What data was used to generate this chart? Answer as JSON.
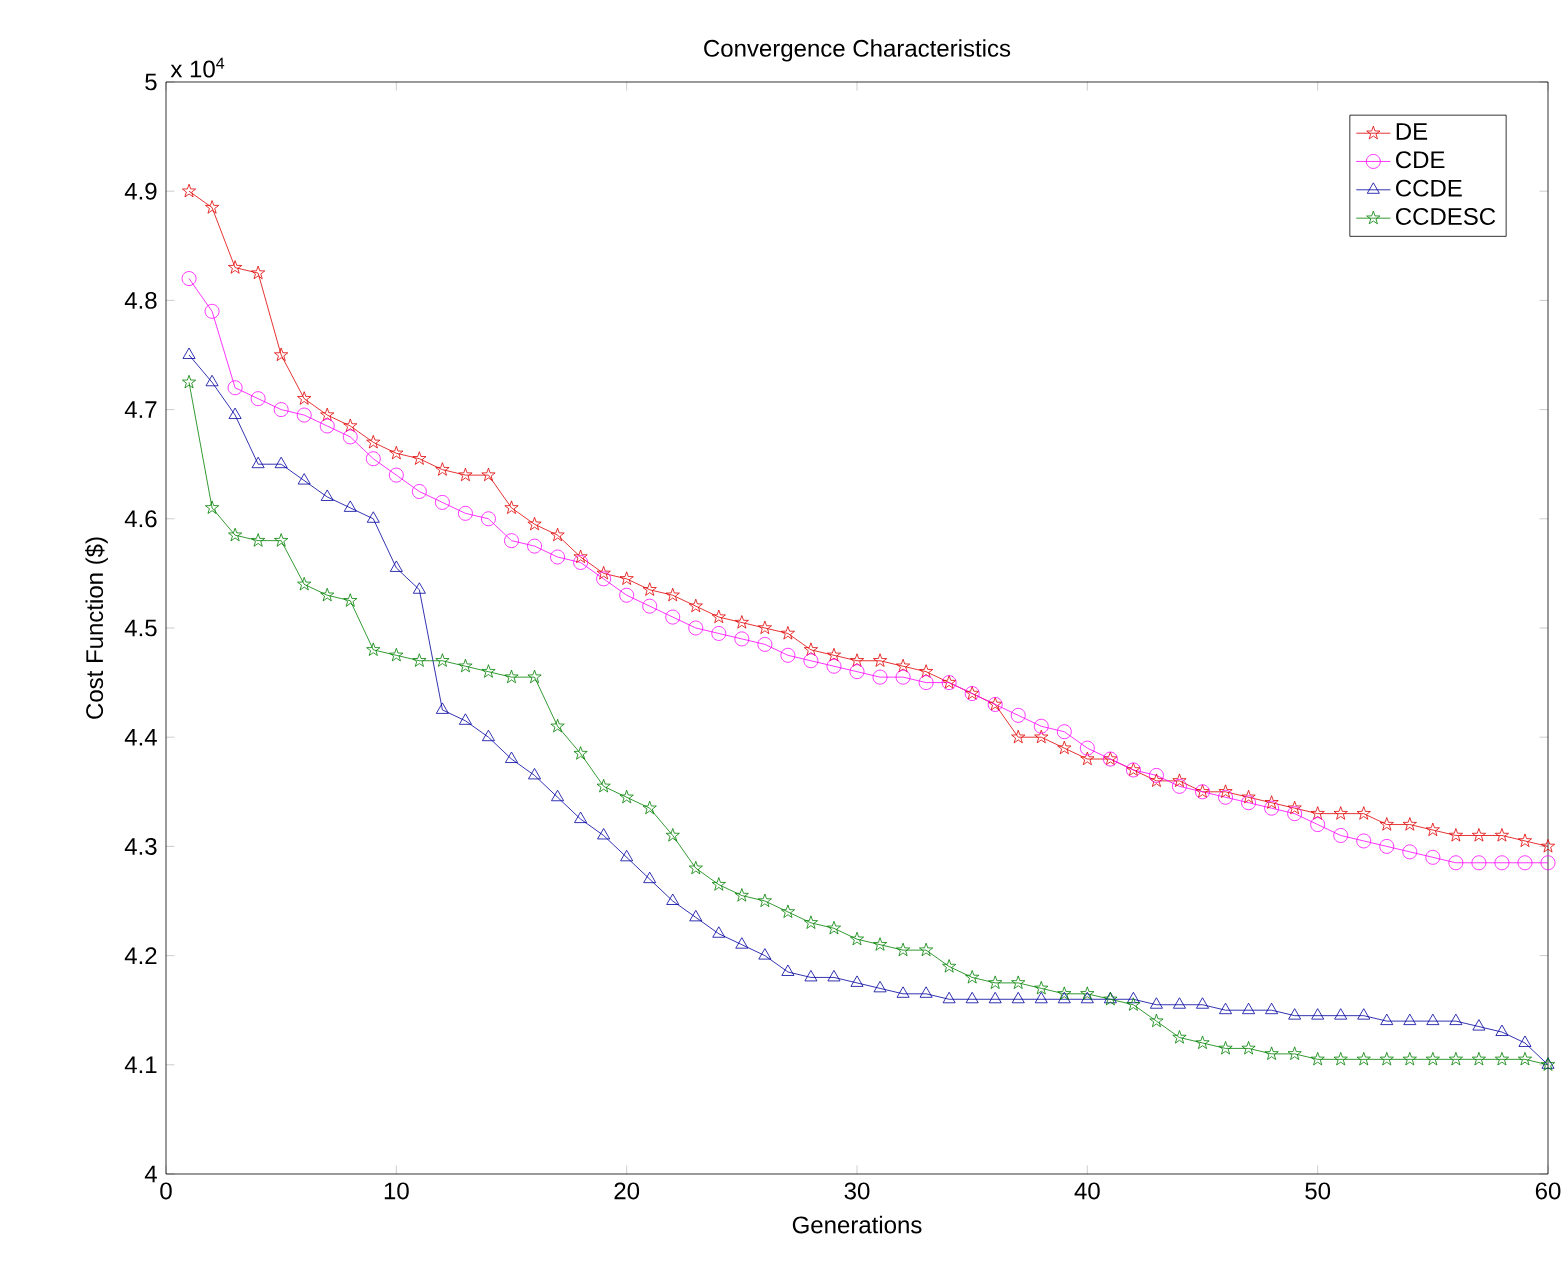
{
  "chart_data": {
    "type": "line",
    "title": "Convergence Characteristics",
    "xlabel": "Generations",
    "ylabel": "Cost Function ($)",
    "annotations": [
      "x 10$^{4}$"
    ],
    "x": [
      1,
      2,
      3,
      4,
      5,
      6,
      7,
      8,
      9,
      10,
      11,
      12,
      13,
      14,
      15,
      16,
      17,
      18,
      19,
      20,
      21,
      22,
      23,
      24,
      25,
      26,
      27,
      28,
      29,
      30,
      31,
      32,
      33,
      34,
      35,
      36,
      37,
      38,
      39,
      40,
      41,
      42,
      43,
      44,
      45,
      46,
      47,
      48,
      49,
      50,
      51,
      52,
      53,
      54,
      55,
      56,
      57,
      58,
      59,
      60
    ],
    "series": [
      {
        "name": "DE",
        "color": "#e00000",
        "marker": "star",
        "values": [
          4.9,
          4.885,
          4.83,
          4.825,
          4.75,
          4.71,
          4.695,
          4.685,
          4.67,
          4.66,
          4.655,
          4.645,
          4.64,
          4.64,
          4.61,
          4.595,
          4.585,
          4.565,
          4.55,
          4.545,
          4.535,
          4.53,
          4.52,
          4.51,
          4.505,
          4.5,
          4.495,
          4.48,
          4.475,
          4.47,
          4.47,
          4.465,
          4.46,
          4.45,
          4.44,
          4.43,
          4.4,
          4.4,
          4.39,
          4.38,
          4.38,
          4.37,
          4.36,
          4.36,
          4.35,
          4.35,
          4.345,
          4.34,
          4.335,
          4.33,
          4.33,
          4.33,
          4.32,
          4.32,
          4.315,
          4.31,
          4.31,
          4.31,
          4.305,
          4.3
        ]
      },
      {
        "name": "CDE",
        "color": "#ff00ff",
        "marker": "circle",
        "values": [
          4.82,
          4.79,
          4.72,
          4.71,
          4.7,
          4.695,
          4.685,
          4.675,
          4.655,
          4.64,
          4.625,
          4.615,
          4.605,
          4.6,
          4.58,
          4.575,
          4.565,
          4.56,
          4.545,
          4.53,
          4.52,
          4.51,
          4.5,
          4.495,
          4.49,
          4.485,
          4.475,
          4.47,
          4.465,
          4.46,
          4.455,
          4.455,
          4.45,
          4.45,
          4.44,
          4.43,
          4.42,
          4.41,
          4.405,
          4.39,
          4.38,
          4.37,
          4.365,
          4.355,
          4.35,
          4.345,
          4.34,
          4.335,
          4.33,
          4.32,
          4.31,
          4.305,
          4.3,
          4.295,
          4.29,
          4.285,
          4.285,
          4.285,
          4.285,
          4.285
        ]
      },
      {
        "name": "CCDE",
        "color": "#0000a0",
        "marker": "triangle",
        "values": [
          4.75,
          4.725,
          4.695,
          4.65,
          4.65,
          4.635,
          4.62,
          4.61,
          4.6,
          4.555,
          4.535,
          4.425,
          4.415,
          4.4,
          4.38,
          4.365,
          4.345,
          4.325,
          4.31,
          4.29,
          4.27,
          4.25,
          4.235,
          4.22,
          4.21,
          4.2,
          4.185,
          4.18,
          4.18,
          4.175,
          4.17,
          4.165,
          4.165,
          4.16,
          4.16,
          4.16,
          4.16,
          4.16,
          4.16,
          4.16,
          4.16,
          4.16,
          4.155,
          4.155,
          4.155,
          4.15,
          4.15,
          4.15,
          4.145,
          4.145,
          4.145,
          4.145,
          4.14,
          4.14,
          4.14,
          4.14,
          4.135,
          4.13,
          4.12,
          4.1
        ]
      },
      {
        "name": "CCDESC",
        "color": "#008000",
        "marker": "star",
        "values": [
          4.725,
          4.61,
          4.585,
          4.58,
          4.58,
          4.54,
          4.53,
          4.525,
          4.48,
          4.475,
          4.47,
          4.47,
          4.465,
          4.46,
          4.455,
          4.455,
          4.41,
          4.385,
          4.355,
          4.345,
          4.335,
          4.31,
          4.28,
          4.265,
          4.255,
          4.25,
          4.24,
          4.23,
          4.225,
          4.215,
          4.21,
          4.205,
          4.205,
          4.19,
          4.18,
          4.175,
          4.175,
          4.17,
          4.165,
          4.165,
          4.16,
          4.155,
          4.14,
          4.125,
          4.12,
          4.115,
          4.115,
          4.11,
          4.11,
          4.105,
          4.105,
          4.105,
          4.105,
          4.105,
          4.105,
          4.105,
          4.105,
          4.105,
          4.105,
          4.1
        ]
      }
    ],
    "xlim": [
      0,
      60
    ],
    "xticks": [
      0,
      10,
      20,
      30,
      40,
      50,
      60
    ],
    "ylim": [
      4,
      5
    ],
    "yticks": [
      4,
      4.1,
      4.2,
      4.3,
      4.4,
      4.5,
      4.6,
      4.7,
      4.8,
      4.9,
      5
    ],
    "grid": false,
    "legend": "top right",
    "line_style": "solid"
  }
}
